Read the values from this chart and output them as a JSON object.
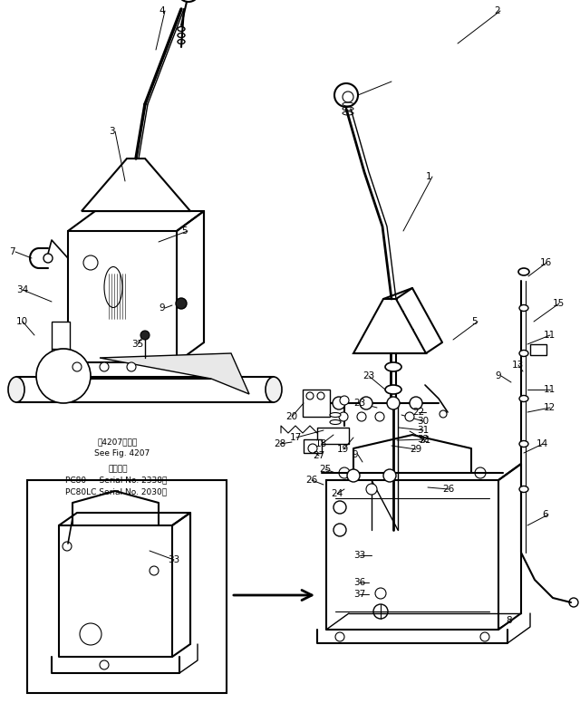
{
  "bg_color": "#ffffff",
  "line_color": "#000000",
  "fig_width": 6.4,
  "fig_height": 7.97,
  "dpi": 100,
  "annotations": {
    "fig_ref_text1": "围4207围参用",
    "fig_ref_text2": "See Fig. 4207",
    "applicable_text": "適用号機",
    "pc80_text": "PC80     Serial No. 2338～",
    "pc80lc_text": "PC80LC Serial No. 2030～"
  }
}
